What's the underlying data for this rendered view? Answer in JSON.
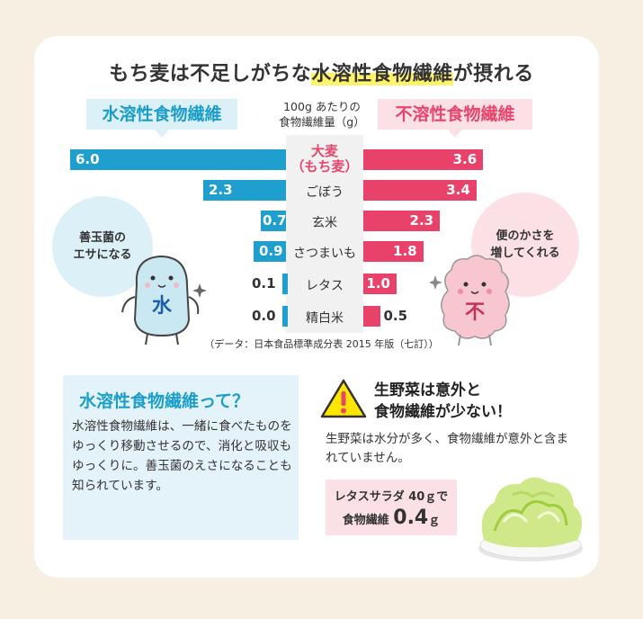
{
  "title": {
    "pre": "もち麦は不足しがちな",
    "highlight": "水溶性食物繊維",
    "post": "が摂れる"
  },
  "legend": {
    "soluble": "水溶性食物繊維",
    "insoluble": "不溶性食物繊維"
  },
  "unit_label": {
    "line1": "100g あたりの",
    "line2": "食物繊維量（g）"
  },
  "chart_data": {
    "type": "bar",
    "categories": [
      "大麦（もち麦）",
      "ごぼう",
      "玄米",
      "さつまいも",
      "レタス",
      "精白米"
    ],
    "series": [
      {
        "name": "水溶性食物繊維",
        "values": [
          6.0,
          2.3,
          0.7,
          0.9,
          0.1,
          0.0
        ]
      },
      {
        "name": "不溶性食物繊維",
        "values": [
          3.6,
          3.4,
          2.3,
          1.8,
          1.0,
          0.5
        ]
      }
    ]
  },
  "rows": [
    {
      "cat_line1": "大麦",
      "cat_line2": "（もち麦）",
      "sol": "6.0",
      "ins": "3.6"
    },
    {
      "cat": "ごぼう",
      "sol": "2.3",
      "ins": "3.4"
    },
    {
      "cat": "玄米",
      "sol": "0.7",
      "ins": "2.3"
    },
    {
      "cat": "さつまいも",
      "sol": "0.9",
      "ins": "1.8"
    },
    {
      "cat": "レタス",
      "sol": "0.1",
      "ins": "1.0"
    },
    {
      "cat": "精白米",
      "sol": "0.0",
      "ins": "0.5"
    }
  ],
  "source": "（データ：日本食品標準成分表 2015 年版（七訂））",
  "bubble_left": {
    "line1": "善玉菌の",
    "line2": "エサになる"
  },
  "bubble_right": {
    "line1": "便のかさを",
    "line2": "増してくれる"
  },
  "mascot_left_label": "水",
  "mascot_right_label": "不",
  "info_box": {
    "heading": "水溶性食物繊維って？",
    "body": "水溶性食物繊維は、一緒に食べたものをゆっくり移動させるので、消化と吸収もゆっくりに。善玉菌のえさになることも知られています。"
  },
  "warning": {
    "icon": "warning-icon",
    "title_line1": "生野菜は意外と",
    "title_line2": "食物繊維が少ない！",
    "text": "生野菜は水分が多く、食物繊維が意外と含まれていません。"
  },
  "salad": {
    "line1": "レタスサラダ 40ｇで",
    "line2_pre": "食物繊維",
    "line2_value": "0.4",
    "line2_unit": "ｇ"
  },
  "colors": {
    "soluble": "#1e9fcd",
    "insoluble": "#e9426a",
    "highlight": "#fff36b"
  }
}
